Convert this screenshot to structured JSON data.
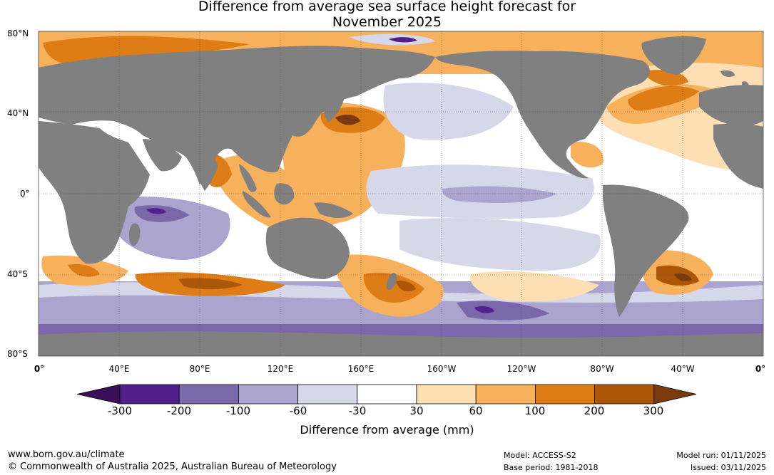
{
  "title_line1": "Difference from average sea surface height forecast for",
  "title_line2": "November 2025",
  "lat_labels": [
    "80°N",
    "40°N",
    "0°",
    "40°S",
    "80°S"
  ],
  "lon_labels": [
    "0°",
    "40°E",
    "80°E",
    "120°E",
    "160°E",
    "160°W",
    "120°W",
    "80°W",
    "40°W",
    "0°"
  ],
  "colorbar": {
    "title": "Difference from average (mm)",
    "tick_labels": [
      "-300",
      "-200",
      "-100",
      "-60",
      "-30",
      "30",
      "60",
      "100",
      "200",
      "300"
    ],
    "low_extend_color": "#3a0f57",
    "high_extend_color": "#7a3a0e",
    "colors": [
      "#51208a",
      "#7a68ab",
      "#aaa4cf",
      "#d7d7ea",
      "#ffffff",
      "#fddfb3",
      "#f7b15c",
      "#de7c16",
      "#ab5609"
    ]
  },
  "map_colors": {
    "land": "#808080",
    "ocean_neutral": "#ffffff",
    "gridline": "#555555"
  },
  "footer": {
    "website": "www.bom.gov.au/climate",
    "copyright": "© Commonwealth of Australia 2025, Australian Bureau of Meteorology",
    "model": "Model: ACCESS-S2",
    "base_period": "Base period: 1981-2018",
    "model_run": "Model run: 01/11/2025",
    "issued": "Issued: 03/11/2025"
  }
}
